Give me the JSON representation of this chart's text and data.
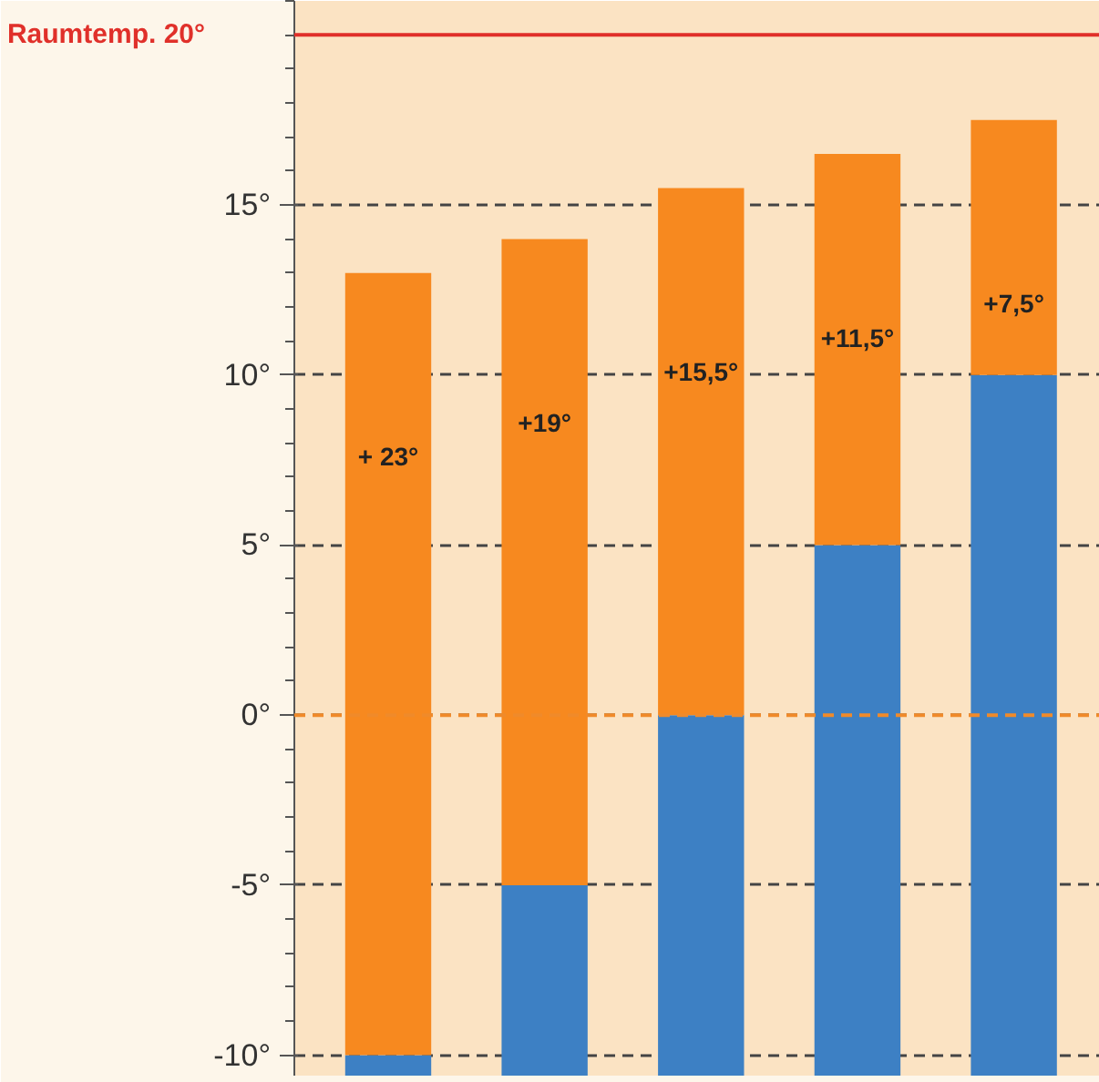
{
  "chart_data": {
    "type": "bar",
    "categories": [
      null,
      null,
      null,
      null,
      null
    ],
    "series": [
      {
        "color": "#3d80c4",
        "base": [
          -10.6,
          -10.6,
          -10.6,
          -10.6,
          -10.6
        ],
        "values": [
          0.6,
          5.6,
          10.6,
          15.6,
          20.6
        ]
      },
      {
        "color": "#f7891f",
        "base": [
          -10,
          -5,
          0,
          5,
          10
        ],
        "values": [
          23,
          19,
          15.5,
          11.5,
          7.5
        ],
        "value_labels": [
          "+ 23°",
          "+19°",
          "+15,5°",
          "+11,5°",
          "+7,5°"
        ]
      }
    ],
    "ylim": [
      -10.6,
      21
    ],
    "yticks": [
      {
        "value": -10,
        "label": "-10°"
      },
      {
        "value": -5,
        "label": "-5°"
      },
      {
        "value": 0,
        "label": "0°"
      },
      {
        "value": 5,
        "label": "5°"
      },
      {
        "value": 10,
        "label": "10°"
      },
      {
        "value": 15,
        "label": "15°"
      }
    ],
    "grid": "y",
    "tick_labels": "y",
    "ref_lines": [
      {
        "axis": "y",
        "value": 20,
        "label": "Raumtemp. 20°",
        "color": "#e0302a",
        "line_style": "solid"
      },
      {
        "axis": "y",
        "value": 0,
        "color": "#f08a2a",
        "line_style": "dashed"
      }
    ]
  }
}
